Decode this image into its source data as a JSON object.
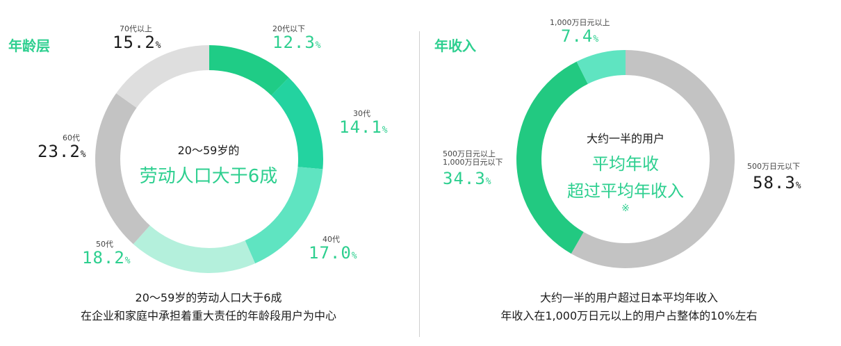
{
  "colors": {
    "accent": "#2dcf8f",
    "age_slices": [
      "#1fcc86",
      "#23d3a0",
      "#5fe4c1",
      "#b4f0dc",
      "#c3c3c3",
      "#dedede"
    ],
    "income_slices": [
      "#c3c3c3",
      "#22c981",
      "#5fe4c1"
    ]
  },
  "age_panel": {
    "title": "年龄层",
    "center_line1": "20～59岁的",
    "center_line2": "劳动人口大于6成",
    "footer_line1": "20～59岁的劳动人口大于6成",
    "footer_line2": "在企业和家庭中承担着重大责任的年龄段用户为中心"
  },
  "income_panel": {
    "title": "年收入",
    "center_line1": "大约一半的用户",
    "center_line2": "平均年收",
    "center_line3": "超过平均年收入",
    "center_mark": "※",
    "footer_line1": "大约一半的用户超过日本平均年收入",
    "footer_line2": "年收入在1,000万日元以上的用户占整体的10%左右"
  },
  "chart_data": [
    {
      "type": "pie",
      "title": "年龄层",
      "categories": [
        "20代以下",
        "30代",
        "40代",
        "50代",
        "60代",
        "70代以上"
      ],
      "values": [
        12.3,
        14.1,
        17.0,
        18.2,
        23.2,
        15.2
      ],
      "display": [
        "12.3",
        "14.1",
        "17.0",
        "18.2",
        "23.2",
        "15.2"
      ],
      "unit": "%",
      "donut": true
    },
    {
      "type": "pie",
      "title": "年收入",
      "categories": [
        "500万日元以下",
        "500万日元以上 1,000万日元以下",
        "1,000万日元以上"
      ],
      "category_lines": [
        [
          "500万日元以下"
        ],
        [
          "500万日元以上",
          "1,000万日元以下"
        ],
        [
          "1,000万日元以上"
        ]
      ],
      "values": [
        58.3,
        34.3,
        7.4
      ],
      "display": [
        "58.3",
        "34.3",
        "7.4"
      ],
      "unit": "%",
      "donut": true
    }
  ]
}
